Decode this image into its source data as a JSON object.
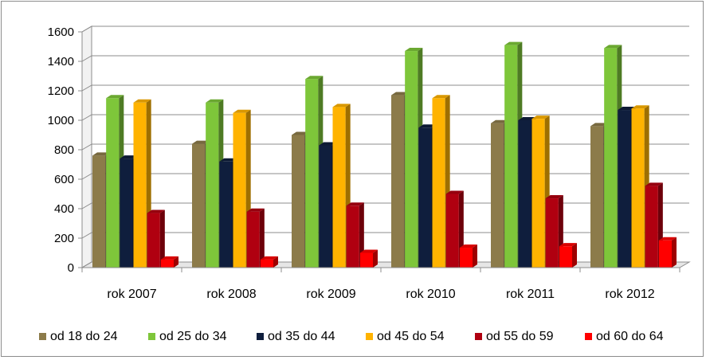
{
  "chart_data": {
    "type": "bar",
    "style": "3d-clustered-column",
    "categories": [
      "rok 2007",
      "rok 2008",
      "rok 2009",
      "rok 2010",
      "rok 2011",
      "rok 2012"
    ],
    "series": [
      {
        "name": "od 18 do 24",
        "color": "#8c7b4a",
        "values": [
          760,
          840,
          900,
          1170,
          980,
          960
        ]
      },
      {
        "name": "od 25 do 34",
        "color": "#7ec63a",
        "values": [
          1150,
          1120,
          1280,
          1470,
          1510,
          1490
        ]
      },
      {
        "name": "od 35 do 44",
        "color": "#0f1e3d",
        "values": [
          740,
          720,
          830,
          950,
          1000,
          1070
        ]
      },
      {
        "name": "od 45 do 54",
        "color": "#ffb300",
        "values": [
          1120,
          1050,
          1090,
          1150,
          1010,
          1080
        ]
      },
      {
        "name": "od 55 do 59",
        "color": "#b00010",
        "values": [
          370,
          380,
          420,
          500,
          470,
          555
        ]
      },
      {
        "name": "od 60 do 64",
        "color": "#ff0000",
        "values": [
          55,
          55,
          100,
          135,
          145,
          185
        ]
      }
    ],
    "yticks": [
      0,
      200,
      400,
      600,
      800,
      1000,
      1200,
      1400,
      1600
    ],
    "ylim": [
      0,
      1600
    ],
    "grid": true,
    "legend": "bottom",
    "title": "",
    "xlabel": "",
    "ylabel": ""
  }
}
